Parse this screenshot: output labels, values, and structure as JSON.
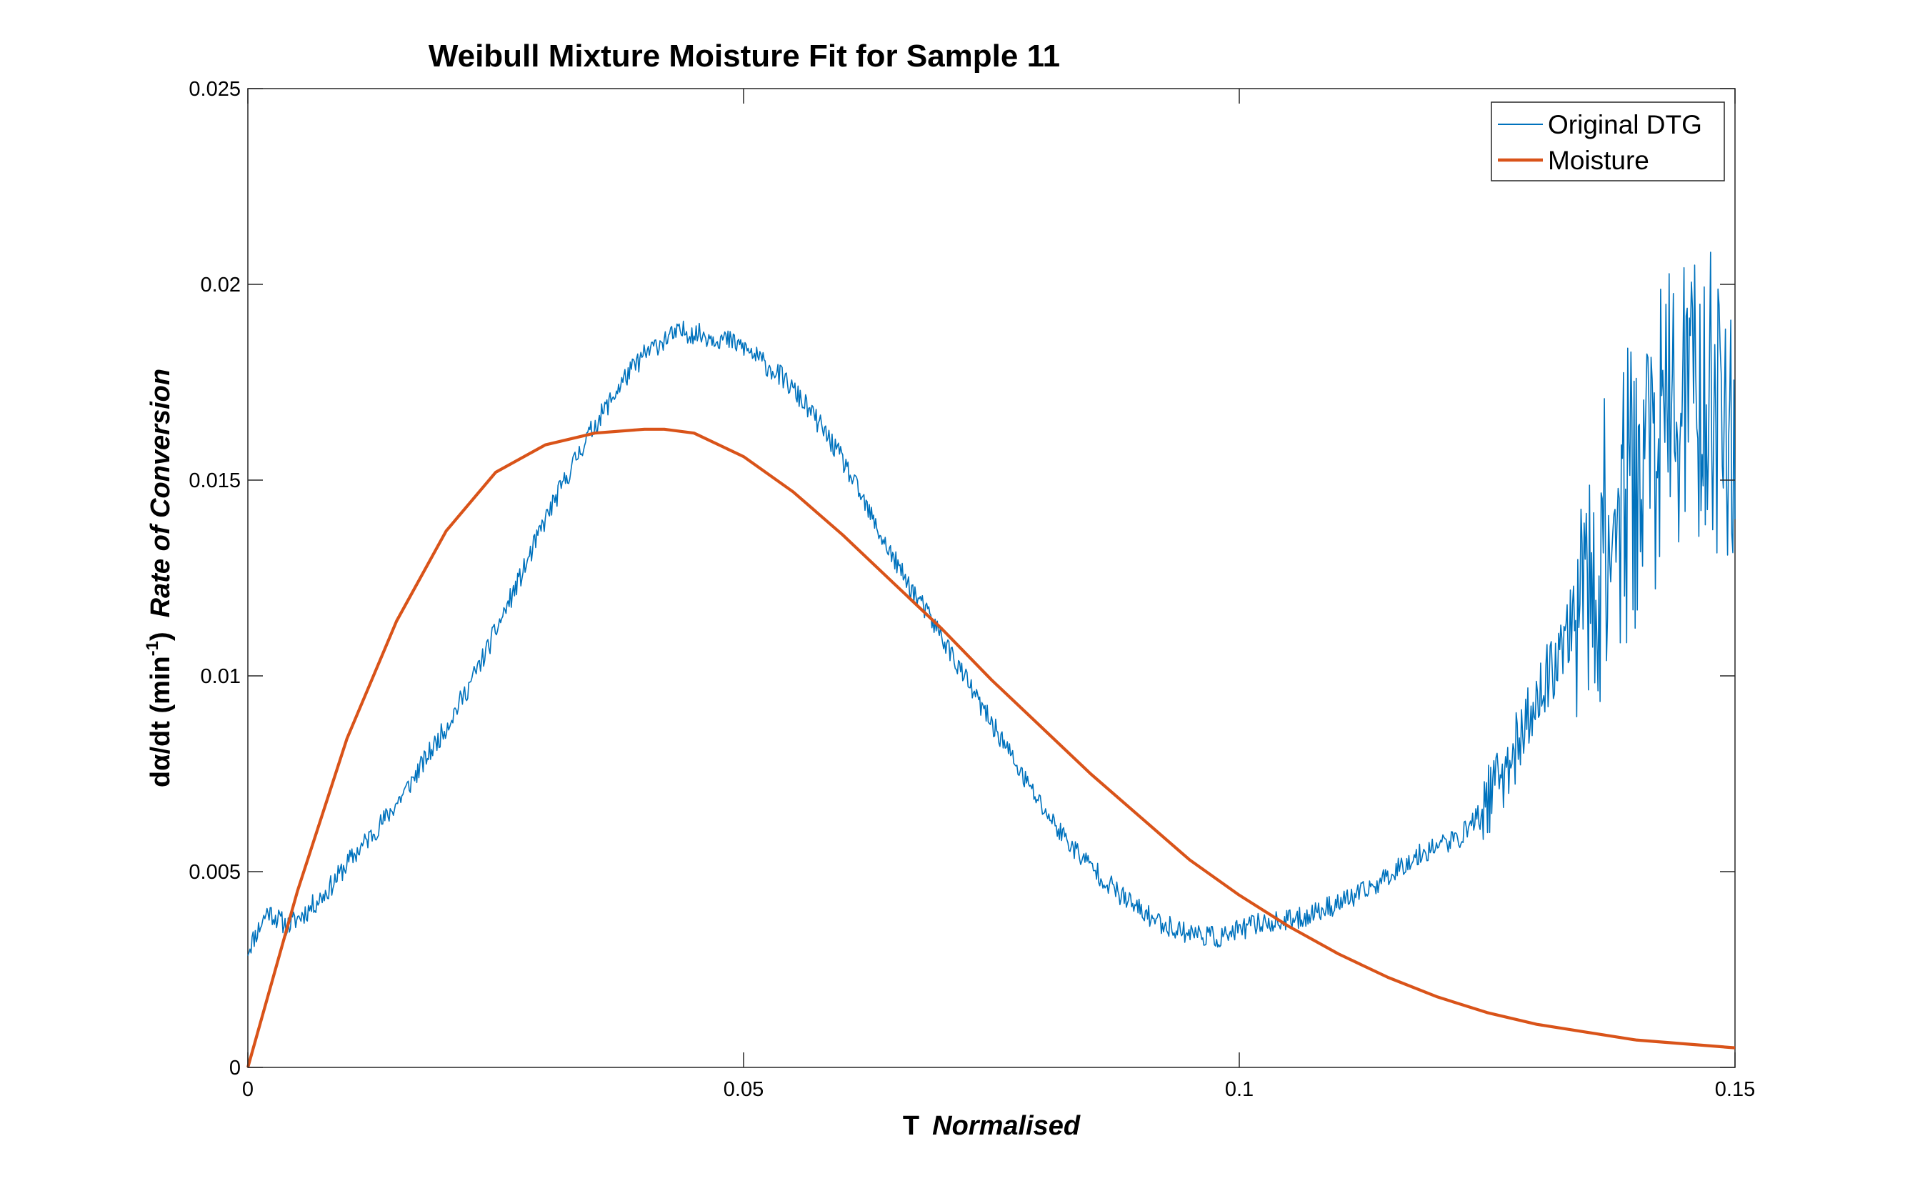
{
  "chart_data": {
    "type": "line",
    "title": "Weibull Mixture Moisture Fit for Sample 11",
    "xlabel": {
      "symbol": "T",
      "name": "Normalised"
    },
    "ylabel": {
      "prefix": "dα/dt (min",
      "exponent": "-1",
      "suffix": ")",
      "name": "Rate of Conversion"
    },
    "xlim": [
      0,
      0.15
    ],
    "ylim": [
      0,
      0.025
    ],
    "x_ticks": [
      0,
      0.05,
      0.1,
      0.15
    ],
    "x_tick_labels": [
      "0",
      "0.05",
      "0.1",
      "0.15"
    ],
    "y_ticks": [
      0,
      0.005,
      0.01,
      0.015,
      0.02,
      0.025
    ],
    "y_tick_labels": [
      "0",
      "0.005",
      "0.01",
      "0.015",
      "0.02",
      "0.025"
    ],
    "grid": false,
    "legend_position": "top-right",
    "series": [
      {
        "name": "Original DTG",
        "color": "#0072BD",
        "style": "thin noisy line",
        "x": [
          0,
          0.002,
          0.004,
          0.006,
          0.008,
          0.01,
          0.012,
          0.014,
          0.016,
          0.018,
          0.02,
          0.022,
          0.024,
          0.026,
          0.028,
          0.03,
          0.032,
          0.034,
          0.036,
          0.038,
          0.04,
          0.042,
          0.044,
          0.046,
          0.048,
          0.05,
          0.052,
          0.054,
          0.056,
          0.058,
          0.06,
          0.062,
          0.064,
          0.066,
          0.068,
          0.07,
          0.072,
          0.074,
          0.076,
          0.078,
          0.08,
          0.082,
          0.084,
          0.086,
          0.088,
          0.09,
          0.092,
          0.094,
          0.096,
          0.098,
          0.1,
          0.102,
          0.104,
          0.106,
          0.108,
          0.11,
          0.112,
          0.114,
          0.116,
          0.118,
          0.12,
          0.122,
          0.124,
          0.126,
          0.128,
          0.13,
          0.132,
          0.134,
          0.136,
          0.138,
          0.14,
          0.142,
          0.144,
          0.146,
          0.148,
          0.15
        ],
        "values": [
          0.003,
          0.004,
          0.0036,
          0.004,
          0.0045,
          0.0052,
          0.0058,
          0.0064,
          0.0071,
          0.0079,
          0.0087,
          0.0096,
          0.0106,
          0.0117,
          0.0128,
          0.014,
          0.015,
          0.016,
          0.0168,
          0.0176,
          0.0182,
          0.0186,
          0.0188,
          0.0187,
          0.0186,
          0.0184,
          0.018,
          0.0176,
          0.017,
          0.0163,
          0.0155,
          0.0145,
          0.0135,
          0.0126,
          0.0118,
          0.011,
          0.0101,
          0.0092,
          0.0084,
          0.0075,
          0.0067,
          0.006,
          0.0054,
          0.0049,
          0.0044,
          0.004,
          0.0037,
          0.0035,
          0.0034,
          0.0033,
          0.0035,
          0.0037,
          0.0037,
          0.0038,
          0.004,
          0.0042,
          0.0044,
          0.0047,
          0.0051,
          0.0054,
          0.0057,
          0.0058,
          0.0064,
          0.0072,
          0.0082,
          0.0093,
          0.0105,
          0.0117,
          0.0128,
          0.014,
          0.015,
          0.016,
          0.0168,
          0.0172,
          0.017,
          0.016
        ]
      },
      {
        "name": "Moisture",
        "color": "#D95319",
        "style": "smooth thick line",
        "x": [
          0,
          0.005,
          0.01,
          0.015,
          0.02,
          0.025,
          0.03,
          0.035,
          0.04,
          0.042,
          0.045,
          0.05,
          0.055,
          0.06,
          0.065,
          0.07,
          0.075,
          0.08,
          0.085,
          0.09,
          0.095,
          0.1,
          0.105,
          0.11,
          0.115,
          0.12,
          0.125,
          0.13,
          0.135,
          0.14,
          0.145,
          0.15
        ],
        "values": [
          0,
          0.0045,
          0.0084,
          0.0114,
          0.0137,
          0.0152,
          0.0159,
          0.0162,
          0.0163,
          0.0163,
          0.0162,
          0.0156,
          0.0147,
          0.0136,
          0.0124,
          0.0112,
          0.0099,
          0.0087,
          0.0075,
          0.0064,
          0.0053,
          0.0044,
          0.0036,
          0.0029,
          0.0023,
          0.0018,
          0.0014,
          0.0011,
          0.0009,
          0.0007,
          0.0006,
          0.0005
        ]
      }
    ]
  }
}
